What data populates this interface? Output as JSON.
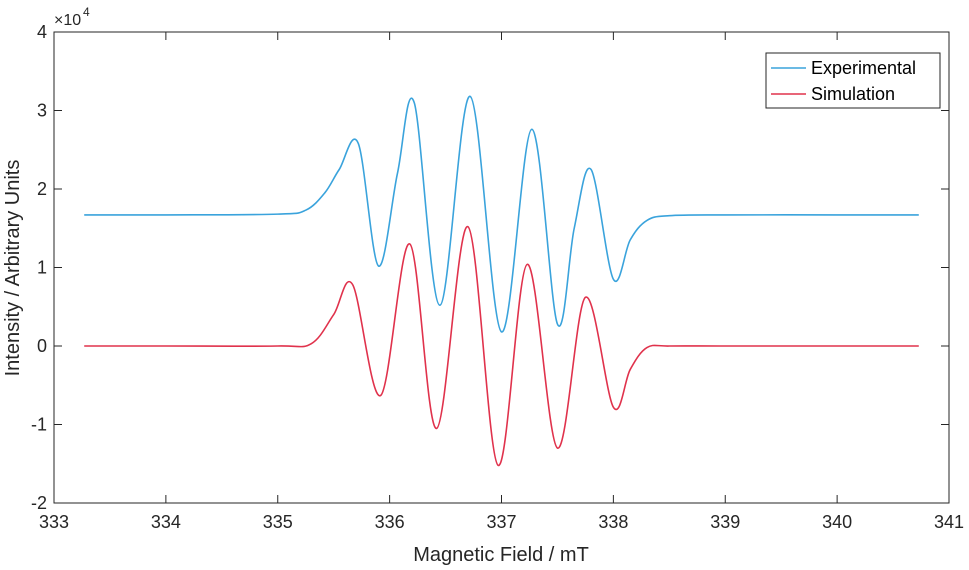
{
  "chart_data": {
    "type": "line",
    "xlabel": "Magnetic Field / mT",
    "ylabel": "Intensity / Arbitrary Units",
    "xlim": [
      333,
      341
    ],
    "ylim": [
      -20000,
      40000
    ],
    "x_ticks": [
      333,
      334,
      335,
      336,
      337,
      338,
      339,
      340,
      341
    ],
    "y_ticks": [
      -2,
      -1,
      0,
      1,
      2,
      3,
      4
    ],
    "y_multiplier_base": "×10",
    "y_multiplier_exponent": "4",
    "grid": false,
    "legend_position": "top-right",
    "series": [
      {
        "name": "Experimental",
        "color": "#3aa3dc",
        "x": [
          333.27,
          334.0,
          335.0,
          335.25,
          335.42,
          335.55,
          335.72,
          335.9,
          336.07,
          336.22,
          336.45,
          336.72,
          337.0,
          337.27,
          337.5,
          337.65,
          337.8,
          338.0,
          338.15,
          338.3,
          338.5,
          339.0,
          340.0,
          340.73
        ],
        "y": [
          16700,
          16700,
          16800,
          17300,
          19500,
          22500,
          25800,
          10200,
          22000,
          31000,
          5200,
          31800,
          1800,
          27600,
          2800,
          15000,
          22500,
          8500,
          13500,
          16000,
          16600,
          16700,
          16700,
          16700
        ]
      },
      {
        "name": "Simulation",
        "color": "#e0324c",
        "x": [
          333.27,
          334.0,
          335.0,
          335.3,
          335.5,
          335.67,
          335.92,
          336.18,
          336.42,
          336.7,
          336.97,
          337.23,
          337.5,
          337.75,
          338.0,
          338.15,
          338.3,
          338.5,
          339.0,
          340.0,
          340.73
        ],
        "y": [
          0,
          0,
          0,
          300,
          4000,
          7800,
          -6300,
          13000,
          -10500,
          15200,
          -15200,
          10400,
          -13000,
          6200,
          -7800,
          -3000,
          -200,
          0,
          0,
          0,
          0
        ]
      }
    ]
  }
}
